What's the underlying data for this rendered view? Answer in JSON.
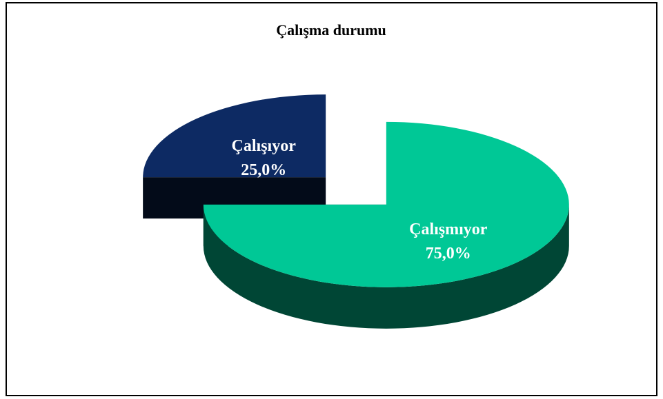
{
  "chart_data": {
    "type": "pie",
    "title": "Çalışma durumu",
    "categories": [
      "Çalışıyor",
      "Çalışmıyor"
    ],
    "values": [
      25,
      75
    ],
    "value_labels": [
      "25,0%",
      "75,0%"
    ],
    "colors": [
      "#0d2a63",
      "#00c896"
    ]
  }
}
